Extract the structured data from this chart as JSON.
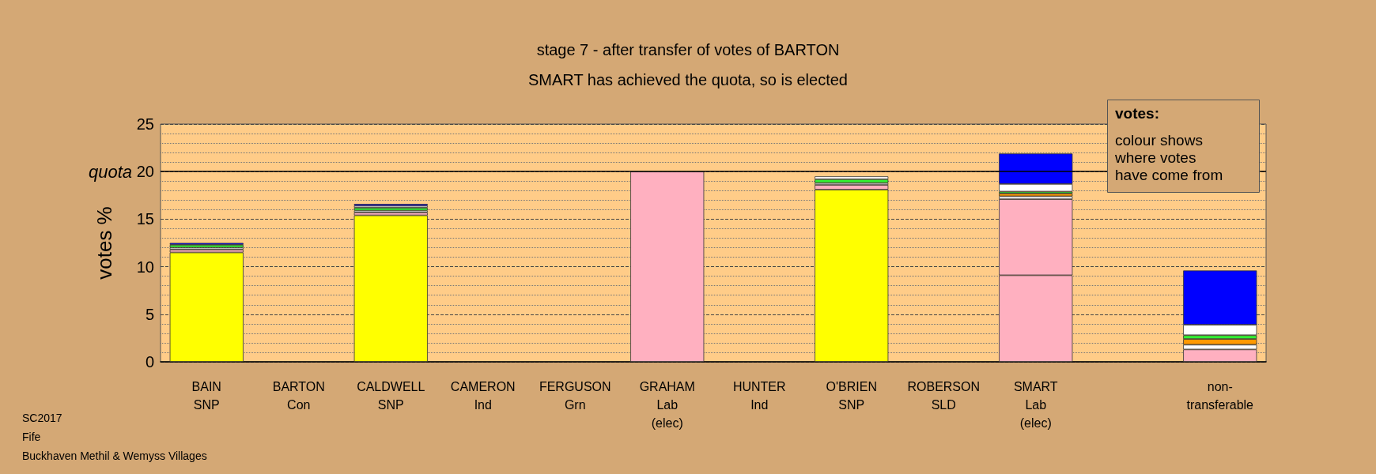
{
  "chart_data": {
    "type": "bar",
    "stacked": true,
    "title": "stage 7 - after transfer of votes of BARTON",
    "subtitle": "SMART has achieved the quota, so is elected",
    "ylabel": "votes %",
    "categories": [
      "BAIN\nSNP",
      "BARTON\nCon",
      "CALDWELL\nSNP",
      "CAMERON\nInd",
      "FERGUSON\nGrn",
      "GRAHAM\nLab\n(elec)",
      "HUNTER\nInd",
      "O'BRIEN\nSNP",
      "ROBERSON\nSLD",
      "SMART\nLab\n(elec)",
      null,
      "non-\ntransferable"
    ],
    "series": [
      {
        "color": "#ffff00",
        "values": [
          11.5,
          0,
          15.4,
          0,
          0,
          0,
          0,
          18.1,
          0,
          0,
          null,
          0
        ]
      },
      {
        "color": "#ffb0c0",
        "values": [
          0.3,
          0,
          0.3,
          0,
          0,
          20.0,
          0,
          0.5,
          0,
          9.1,
          null,
          1.3
        ]
      },
      {
        "color": "#ffb0c0",
        "values": [
          0,
          0,
          0,
          0,
          0,
          0,
          0,
          0,
          0,
          8.0,
          null,
          0
        ]
      },
      {
        "color": "#ffffff",
        "values": [
          0.2,
          0,
          0.2,
          0,
          0,
          0,
          0,
          0.2,
          0,
          0.3,
          null,
          0.5
        ]
      },
      {
        "color": "#ff9900",
        "values": [
          0,
          0,
          0,
          0,
          0,
          0,
          0,
          0,
          0,
          0.3,
          null,
          0.6
        ]
      },
      {
        "color": "#33ee33",
        "values": [
          0.3,
          0,
          0.3,
          0,
          0,
          0,
          0,
          0.4,
          0,
          0.2,
          null,
          0.4
        ]
      },
      {
        "color": "#ffffff",
        "values": [
          0,
          0,
          0.2,
          0,
          0,
          0,
          0,
          0.3,
          0,
          0.8,
          null,
          1.1
        ]
      },
      {
        "color": "#0000ff",
        "values": [
          0.2,
          0,
          0.2,
          0,
          0,
          0,
          0,
          0,
          0,
          3.2,
          null,
          5.7
        ]
      }
    ],
    "ylim": [
      0,
      25
    ],
    "yticks": [
      0,
      5,
      10,
      15,
      20,
      25
    ],
    "grid": "y",
    "ref_lines": [
      {
        "axis": "y",
        "value": 20,
        "label": "quota",
        "color": "#000000",
        "line_style": "solid"
      }
    ],
    "annotations": [
      "votes:",
      "colour shows\nwhere votes\nhave come from",
      "SC2017",
      "Fife",
      "Buckhaven Methil & Wemyss Villages"
    ]
  }
}
